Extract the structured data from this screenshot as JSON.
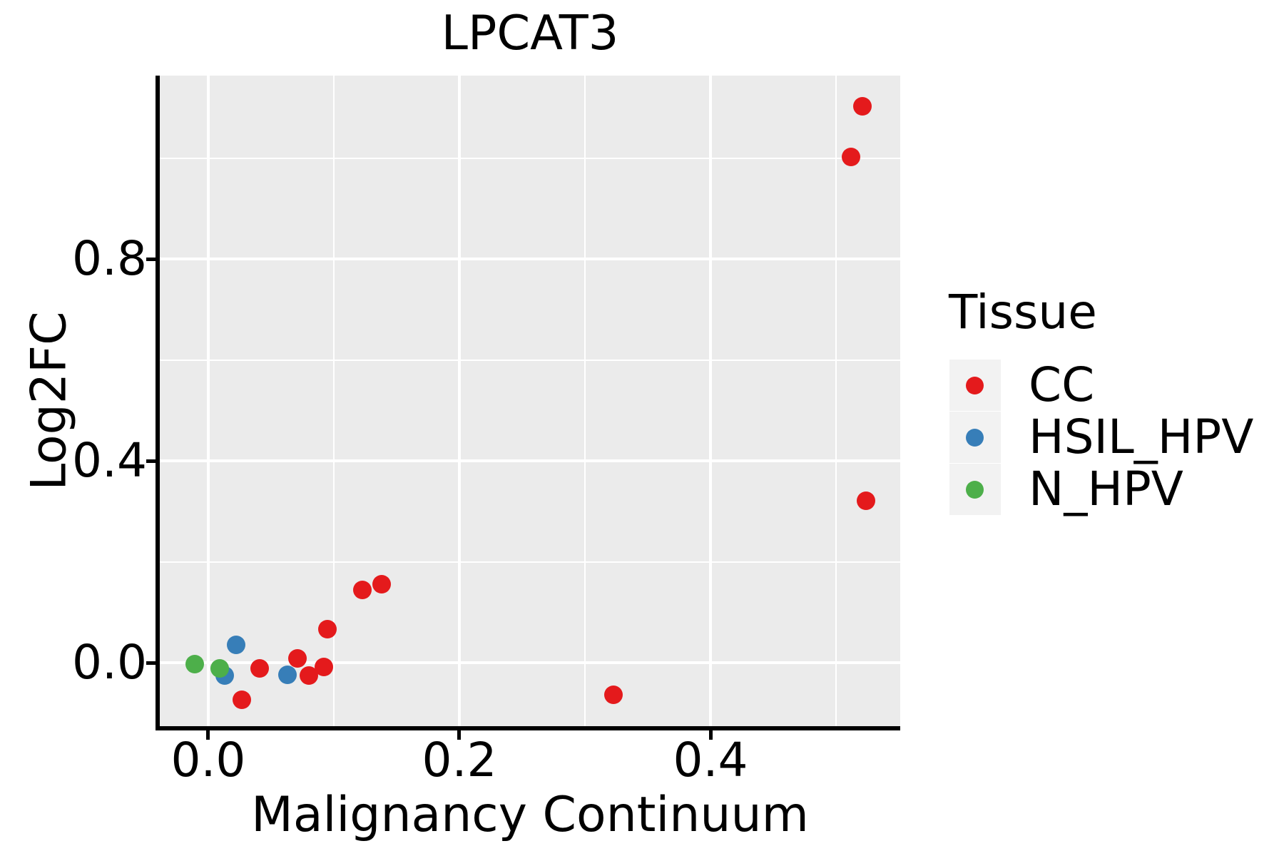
{
  "title": "LPCAT3",
  "axes": {
    "xlabel": "Malignancy Continuum",
    "ylabel": "Log2FC",
    "x_tick_labels": [
      "0.0",
      "0.2",
      "0.4"
    ],
    "y_tick_labels": [
      "0.0",
      "0.4",
      "0.8"
    ]
  },
  "legend": {
    "title": "Tissue",
    "entries": [
      {
        "label": "CC",
        "color": "#e41a1c"
      },
      {
        "label": "HSIL_HPV",
        "color": "#377eb8"
      },
      {
        "label": "N_HPV",
        "color": "#4daf4a"
      }
    ]
  },
  "colors": {
    "panel_background": "#ebebeb",
    "legend_key_background": "#f2f2f2",
    "gridline": "#ffffff",
    "axis_spine": "#000000",
    "series_red": "#e41a1c",
    "series_blue": "#377eb8",
    "series_green": "#4daf4a"
  },
  "chart_data": {
    "type": "scatter",
    "title": "LPCAT3",
    "xlabel": "Malignancy Continuum",
    "ylabel": "Log2FC",
    "xlim": [
      -0.0386,
      0.5511
    ],
    "ylim": [
      -0.1258,
      1.1633
    ],
    "grid": true,
    "legend_position": "right",
    "legend_title": "Tissue",
    "x_ticks": [
      {
        "v": 0.0,
        "label": "0.0"
      },
      {
        "v": 0.2,
        "label": "0.2"
      },
      {
        "v": 0.4,
        "label": "0.4"
      }
    ],
    "y_ticks": [
      {
        "v": 0.0,
        "label": "0.0"
      },
      {
        "v": 0.4,
        "label": "0.4"
      },
      {
        "v": 0.8,
        "label": "0.8"
      }
    ],
    "x_minor_gridlines": [
      0.1,
      0.3,
      0.5
    ],
    "y_minor_gridlines": [
      0.2,
      0.6,
      1.0
    ],
    "series": [
      {
        "name": "CC",
        "color": "#e41a1c",
        "points": [
          [
            0.027,
            -0.073
          ],
          [
            0.041,
            -0.012
          ],
          [
            0.071,
            0.008
          ],
          [
            0.08,
            -0.025
          ],
          [
            0.092,
            -0.008
          ],
          [
            0.095,
            0.066
          ],
          [
            0.123,
            0.144
          ],
          [
            0.138,
            0.155
          ],
          [
            0.323,
            -0.064
          ],
          [
            0.524,
            0.321
          ],
          [
            0.512,
            1.002
          ],
          [
            0.521,
            1.103
          ]
        ]
      },
      {
        "name": "HSIL_HPV",
        "color": "#377eb8",
        "points": [
          [
            0.013,
            -0.026
          ],
          [
            0.022,
            0.035
          ],
          [
            0.063,
            -0.024
          ]
        ]
      },
      {
        "name": "N_HPV",
        "color": "#4daf4a",
        "points": [
          [
            -0.011,
            -0.003
          ],
          [
            0.009,
            -0.012
          ]
        ]
      }
    ]
  }
}
